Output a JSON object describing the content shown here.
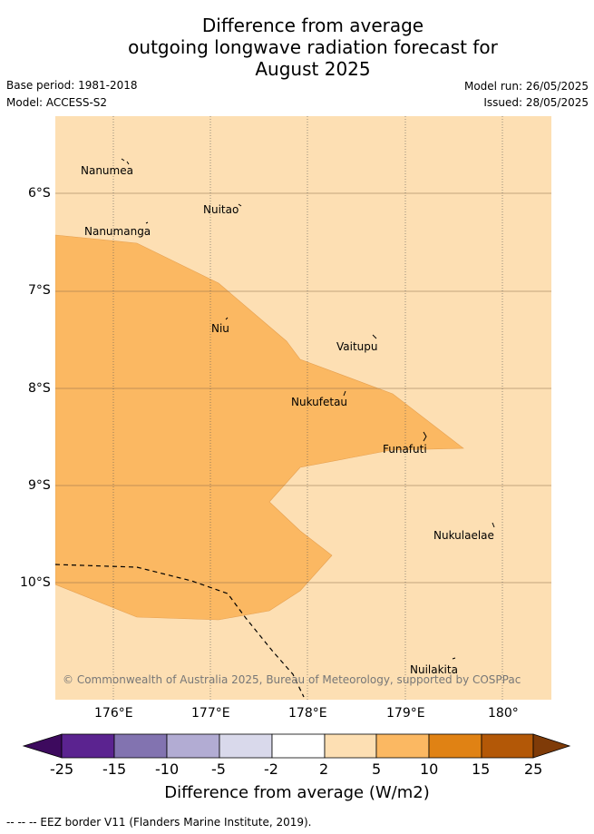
{
  "title": {
    "line1": "Difference from average",
    "line2": "outgoing longwave radiation forecast for",
    "line3": "August 2025"
  },
  "meta": {
    "base_period": "Base period: 1981-2018",
    "model": "Model: ACCESS-S2",
    "model_run": "Model run: 26/05/2025",
    "issued": "Issued: 28/05/2025"
  },
  "map": {
    "lat_labels": [
      "6°S",
      "7°S",
      "8°S",
      "9°S",
      "10°S"
    ],
    "lon_labels": [
      "176°E",
      "177°E",
      "178°E",
      "179°E",
      "180°"
    ],
    "places": [
      {
        "name": "Nanumea"
      },
      {
        "name": "Nuitao"
      },
      {
        "name": "Nanumanga"
      },
      {
        "name": "Niu"
      },
      {
        "name": "Vaitupu"
      },
      {
        "name": "Nukufetau"
      },
      {
        "name": "Funafuti"
      },
      {
        "name": "Nukulaelae"
      },
      {
        "name": "Nuilakita"
      }
    ],
    "copyright": "© Commonwealth of Australia 2025, Bureau of Meteorology, supported by COSPPac",
    "colors": {
      "background_band": "#fddfb3",
      "anomaly_band": "#fbb862",
      "eez_border": "#000000"
    }
  },
  "colorbar": {
    "ticks": [
      "-25",
      "-15",
      "-10",
      "-5",
      "-2",
      "2",
      "5",
      "10",
      "15",
      "25"
    ],
    "colors": [
      "#3d0a5e",
      "#5b2390",
      "#8273b0",
      "#b2acd3",
      "#d9d9eb",
      "#ffffff",
      "#fddfb3",
      "#fbb862",
      "#e08214",
      "#b35807",
      "#7f3b08"
    ],
    "label": "Difference from average (W/m2)"
  },
  "legend": {
    "eez": "-- -- -- EEZ border V11 (Flanders Marine Institute, 2019)."
  }
}
